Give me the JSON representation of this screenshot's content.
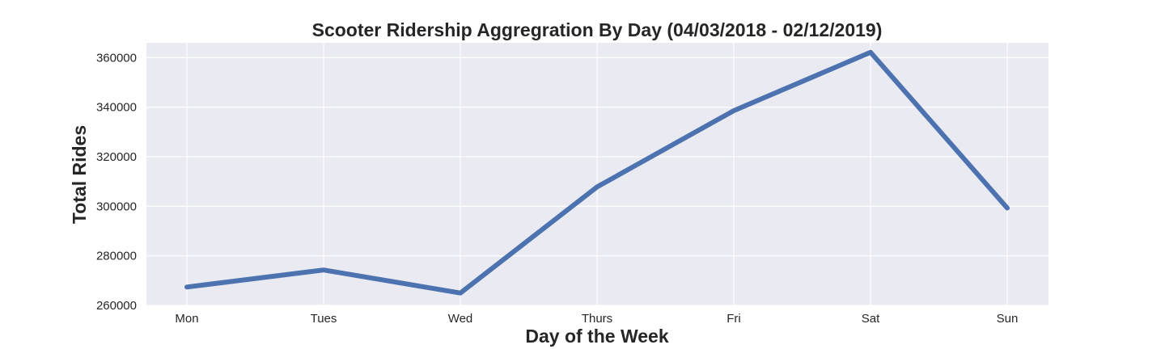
{
  "chart_data": {
    "type": "line",
    "title": "Scooter Ridership Aggregration By Day (04/03/2018 - 02/12/2019)",
    "xlabel": "Day of the Week",
    "ylabel": "Total Rides",
    "categories": [
      "Mon",
      "Tues",
      "Wed",
      "Thurs",
      "Fri",
      "Sat",
      "Sun"
    ],
    "series": [
      {
        "values": [
          267400,
          274300,
          265000,
          307800,
          338600,
          362200,
          299300
        ]
      }
    ],
    "ylim": [
      260000,
      366000
    ],
    "yticks": [
      "260000",
      "280000",
      "300000",
      "320000",
      "340000",
      "360000"
    ],
    "grid": true,
    "colors": {
      "background": "#eaeaf2",
      "grid": "#ffffff",
      "line": "#4c72b0"
    }
  }
}
